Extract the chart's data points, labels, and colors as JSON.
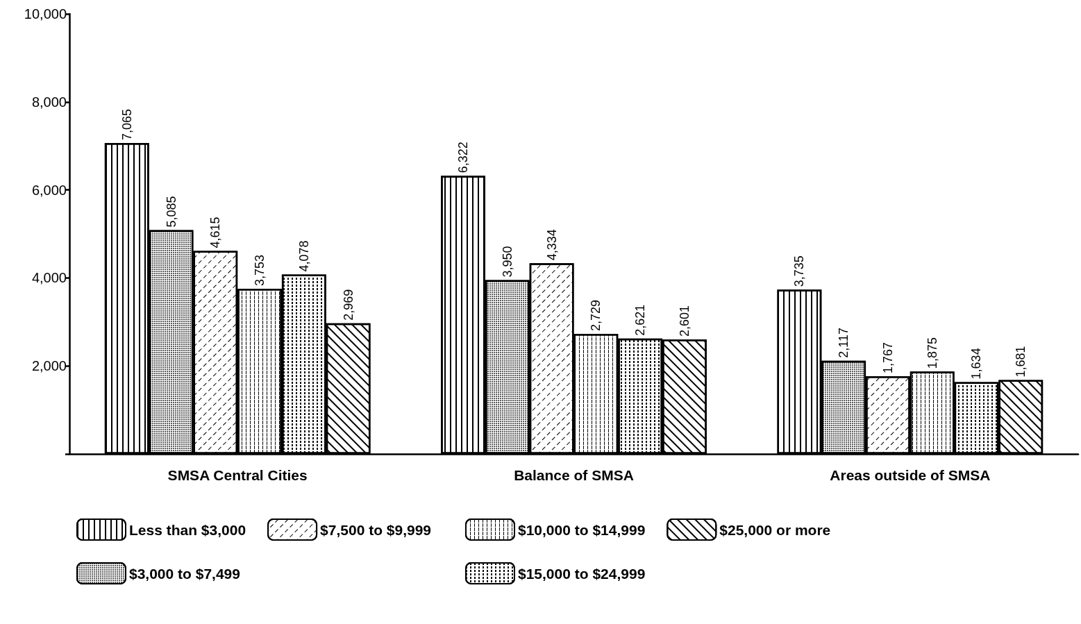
{
  "chart_data": {
    "type": "bar",
    "categories": [
      "SMSA Central Cities",
      "Balance of SMSA",
      "Areas outside of SMSA"
    ],
    "series": [
      {
        "name": "Less than $3,000",
        "color": "#ffffff",
        "values": [
          7065,
          6322,
          3735
        ],
        "value_labels": [
          "7,065",
          "6,322",
          "3,735"
        ]
      },
      {
        "name": "$3,000 to $7,499",
        "color": "#ffffff",
        "values": [
          5085,
          3950,
          2117
        ],
        "value_labels": [
          "5,085",
          "3,950",
          "2,117"
        ]
      },
      {
        "name": "$7,500 to $9,999",
        "color": "#ffffff",
        "values": [
          4615,
          4334,
          1767
        ],
        "value_labels": [
          "4,615",
          "4,334",
          "1,767"
        ]
      },
      {
        "name": "$10,000 to $14,999",
        "color": "#ffffff",
        "values": [
          3753,
          2729,
          1875
        ],
        "value_labels": [
          "3,753",
          "2,729",
          "1,875"
        ]
      },
      {
        "name": "$15,000 to $24,999",
        "color": "#ffffff",
        "values": [
          4078,
          2621,
          1634
        ],
        "value_labels": [
          "4,078",
          "2,621",
          "1,634"
        ]
      },
      {
        "name": "$25,000 or more",
        "color": "#ffffff",
        "values": [
          2969,
          2601,
          1681
        ],
        "value_labels": [
          "2,969",
          "2,601",
          "1,681"
        ]
      }
    ],
    "ylim": [
      0,
      10000
    ],
    "yticks": [
      {
        "value": 0,
        "label": null
      },
      {
        "value": 2000,
        "label": "2,000"
      },
      {
        "value": 4000,
        "label": "4,000"
      },
      {
        "value": 6000,
        "label": "6,000"
      },
      {
        "value": 8000,
        "label": "8,000"
      },
      {
        "value": 10000,
        "label": "10,000"
      }
    ],
    "grid": false,
    "legend": "bottom"
  }
}
